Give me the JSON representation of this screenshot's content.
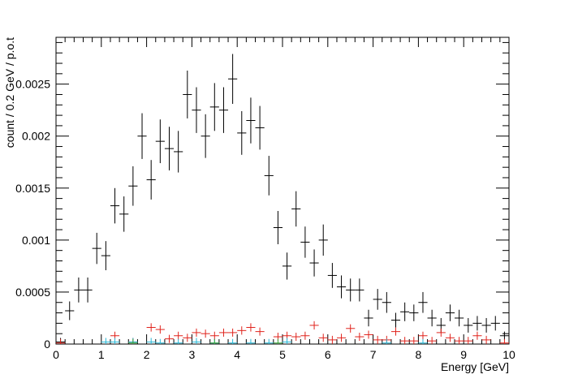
{
  "chart_data": {
    "type": "scatter",
    "title": "",
    "xlabel": "Energy [GeV]",
    "ylabel": "count / 0.2 GeV / p.o.t",
    "xlim": [
      0,
      10
    ],
    "ylim": [
      0,
      0.00295
    ],
    "x_ticks": [
      "0",
      "1",
      "2",
      "3",
      "4",
      "5",
      "6",
      "7",
      "8",
      "9",
      "10"
    ],
    "y_ticks": [
      "0",
      "0.0005",
      "0.001",
      "0.0015",
      "0.002",
      "0.0025"
    ],
    "bin_width": 0.2,
    "grid": false,
    "legend": false,
    "series": [
      {
        "color": "#000000",
        "x": [
          0.1,
          0.3,
          0.5,
          0.7,
          0.9,
          1.1,
          1.3,
          1.5,
          1.7,
          1.9,
          2.1,
          2.3,
          2.5,
          2.7,
          2.9,
          3.1,
          3.3,
          3.5,
          3.7,
          3.9,
          4.1,
          4.3,
          4.5,
          4.7,
          4.9,
          5.1,
          5.3,
          5.5,
          5.7,
          5.9,
          6.1,
          6.3,
          6.5,
          6.7,
          6.9,
          7.1,
          7.3,
          7.5,
          7.7,
          7.9,
          8.1,
          8.3,
          8.5,
          8.7,
          8.9,
          9.1,
          9.3,
          9.5,
          9.7,
          9.9
        ],
        "y": [
          2e-05,
          0.00032,
          0.00052,
          0.00052,
          0.00092,
          0.00085,
          0.00133,
          0.00125,
          0.00152,
          0.002,
          0.00158,
          0.00195,
          0.00188,
          0.00185,
          0.0024,
          0.00225,
          0.002,
          0.00228,
          0.00225,
          0.00255,
          0.00203,
          0.00215,
          0.00208,
          0.00162,
          0.00112,
          0.00075,
          0.0013,
          0.00098,
          0.00078,
          0.001,
          0.00066,
          0.00055,
          0.00052,
          0.00052,
          0.00025,
          0.00043,
          0.0004,
          0.00023,
          0.00031,
          0.0003,
          0.0004,
          0.00025,
          0.00018,
          0.0003,
          0.00025,
          0.00018,
          0.0002,
          0.00018,
          0.0002,
          8e-05
        ],
        "yerr": [
          4e-05,
          9e-05,
          0.00012,
          0.00012,
          0.00015,
          0.00014,
          0.00017,
          0.00017,
          0.00019,
          0.00022,
          0.00019,
          0.00021,
          0.00021,
          0.0002,
          0.00023,
          0.00022,
          0.00021,
          0.00023,
          0.00022,
          0.00024,
          0.00021,
          0.00022,
          0.00021,
          0.00019,
          0.00016,
          0.00013,
          0.00017,
          0.00015,
          0.00013,
          0.00015,
          0.00012,
          0.00011,
          0.00011,
          0.00011,
          8e-05,
          0.0001,
          0.0001,
          7e-05,
          9e-05,
          8e-05,
          0.0001,
          8e-05,
          7e-05,
          8e-05,
          8e-05,
          7e-05,
          7e-05,
          7e-05,
          7e-05,
          4e-05
        ]
      },
      {
        "color": "#e0231c",
        "x": [
          0.1,
          1.3,
          1.7,
          2.1,
          2.3,
          2.5,
          2.7,
          2.9,
          3.1,
          3.3,
          3.5,
          3.7,
          3.9,
          4.1,
          4.3,
          4.5,
          4.9,
          5.1,
          5.3,
          5.5,
          5.7,
          5.9,
          6.1,
          6.3,
          6.5,
          6.7,
          6.9,
          7.1,
          7.3,
          7.5,
          7.7,
          7.9,
          8.1,
          8.3,
          8.5,
          8.7,
          8.9,
          9.1,
          9.3,
          9.5,
          9.9
        ],
        "y": [
          1e-05,
          8e-05,
          2e-05,
          0.00016,
          0.00014,
          5e-05,
          8e-05,
          6e-05,
          0.00011,
          0.0001,
          8e-05,
          0.00011,
          0.00011,
          0.00013,
          0.00016,
          0.00012,
          7e-05,
          8e-05,
          7e-05,
          8e-05,
          0.00018,
          6e-05,
          4e-05,
          6e-05,
          0.00015,
          7e-05,
          9e-05,
          4e-05,
          4e-05,
          0.00012,
          3e-05,
          3e-05,
          8e-05,
          3e-05,
          0.00011,
          6e-05,
          3e-05,
          3e-05,
          8e-05,
          4e-05,
          1e-05
        ],
        "yerr": [
          2e-05,
          3e-05,
          2e-05,
          4e-05,
          4e-05,
          2e-05,
          3e-05,
          2e-05,
          3e-05,
          3e-05,
          3e-05,
          3e-05,
          3e-05,
          4e-05,
          4e-05,
          3e-05,
          3e-05,
          3e-05,
          3e-05,
          3e-05,
          4e-05,
          2e-05,
          2e-05,
          2e-05,
          4e-05,
          3e-05,
          3e-05,
          2e-05,
          2e-05,
          3e-05,
          2e-05,
          2e-05,
          3e-05,
          2e-05,
          3e-05,
          2e-05,
          2e-05,
          2e-05,
          3e-05,
          2e-05,
          1e-05
        ]
      },
      {
        "color": "#29b7d6",
        "x": [
          1.1,
          1.3,
          1.7,
          2.1,
          2.3,
          2.7,
          3.1,
          3.5,
          3.9,
          4.3,
          4.7,
          5.1,
          7.3,
          8.1
        ],
        "y": [
          2e-05,
          2e-05,
          2e-05,
          2e-05,
          1e-05,
          1e-05,
          2e-05,
          1e-05,
          1e-05,
          1e-05,
          1e-05,
          2e-05,
          1e-05,
          1e-05
        ],
        "yerr": [
          1e-05,
          1e-05,
          1e-05,
          1e-05,
          1e-05,
          1e-05,
          1e-05,
          1e-05,
          1e-05,
          1e-05,
          1e-05,
          1e-05,
          1e-05,
          1e-05
        ]
      },
      {
        "color": "#3aa43a",
        "x": [
          1.7,
          3.5,
          4.9
        ],
        "y": [
          1e-05,
          1e-05,
          1e-05
        ],
        "yerr": [
          1e-05,
          1e-05,
          1e-05
        ]
      }
    ]
  }
}
